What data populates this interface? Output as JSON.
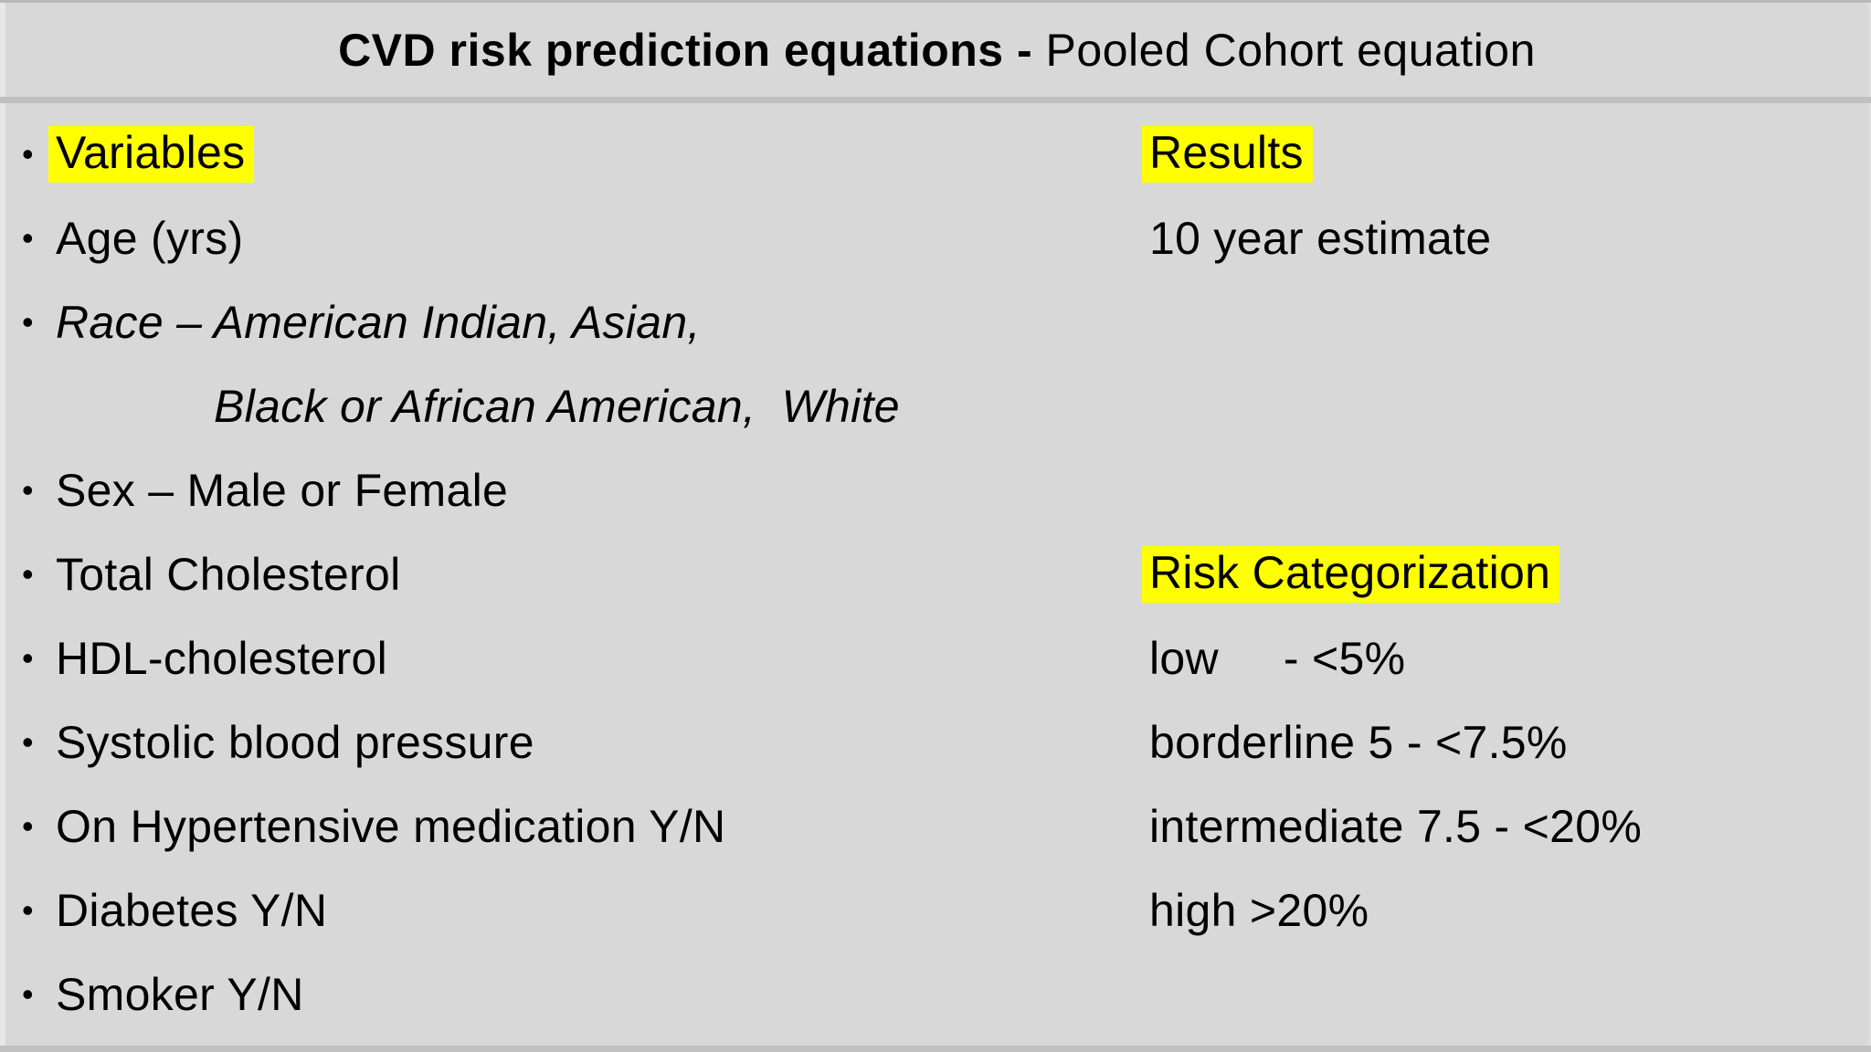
{
  "title": {
    "bold": "CVD risk prediction equations - ",
    "regular": "Pooled Cohort equation"
  },
  "glyphs": {
    "bullet": "•"
  },
  "left_column": {
    "items": [
      {
        "text": "Variables"
      },
      {
        "text": "Age (yrs)"
      },
      {
        "text": "Race – American Indian, Asian,"
      },
      {
        "text": "Black or African American,  White"
      },
      {
        "text": "Sex – Male or Female"
      },
      {
        "text": "Total Cholesterol"
      },
      {
        "text": "HDL-cholesterol"
      },
      {
        "text": "Systolic blood pressure"
      },
      {
        "text": "On Hypertensive medication Y/N"
      },
      {
        "text": "Diabetes Y/N"
      },
      {
        "text": "Smoker Y/N"
      }
    ]
  },
  "right_column": {
    "items": [
      {
        "text": "Results"
      },
      {
        "text": "10 year estimate"
      },
      {
        "text": ""
      },
      {
        "text": ""
      },
      {
        "text": ""
      },
      {
        "text": "Risk Categorization"
      },
      {
        "text": "low     - <5%"
      },
      {
        "text": "borderline 5 - <7.5%"
      },
      {
        "text": "intermediate 7.5 - <20%"
      },
      {
        "text": "high >20%"
      },
      {
        "text": ""
      }
    ]
  },
  "colors": {
    "background": "#d8d8d8",
    "highlight": "#ffff00",
    "divider": "#c0c0c0",
    "text": "#000000"
  }
}
